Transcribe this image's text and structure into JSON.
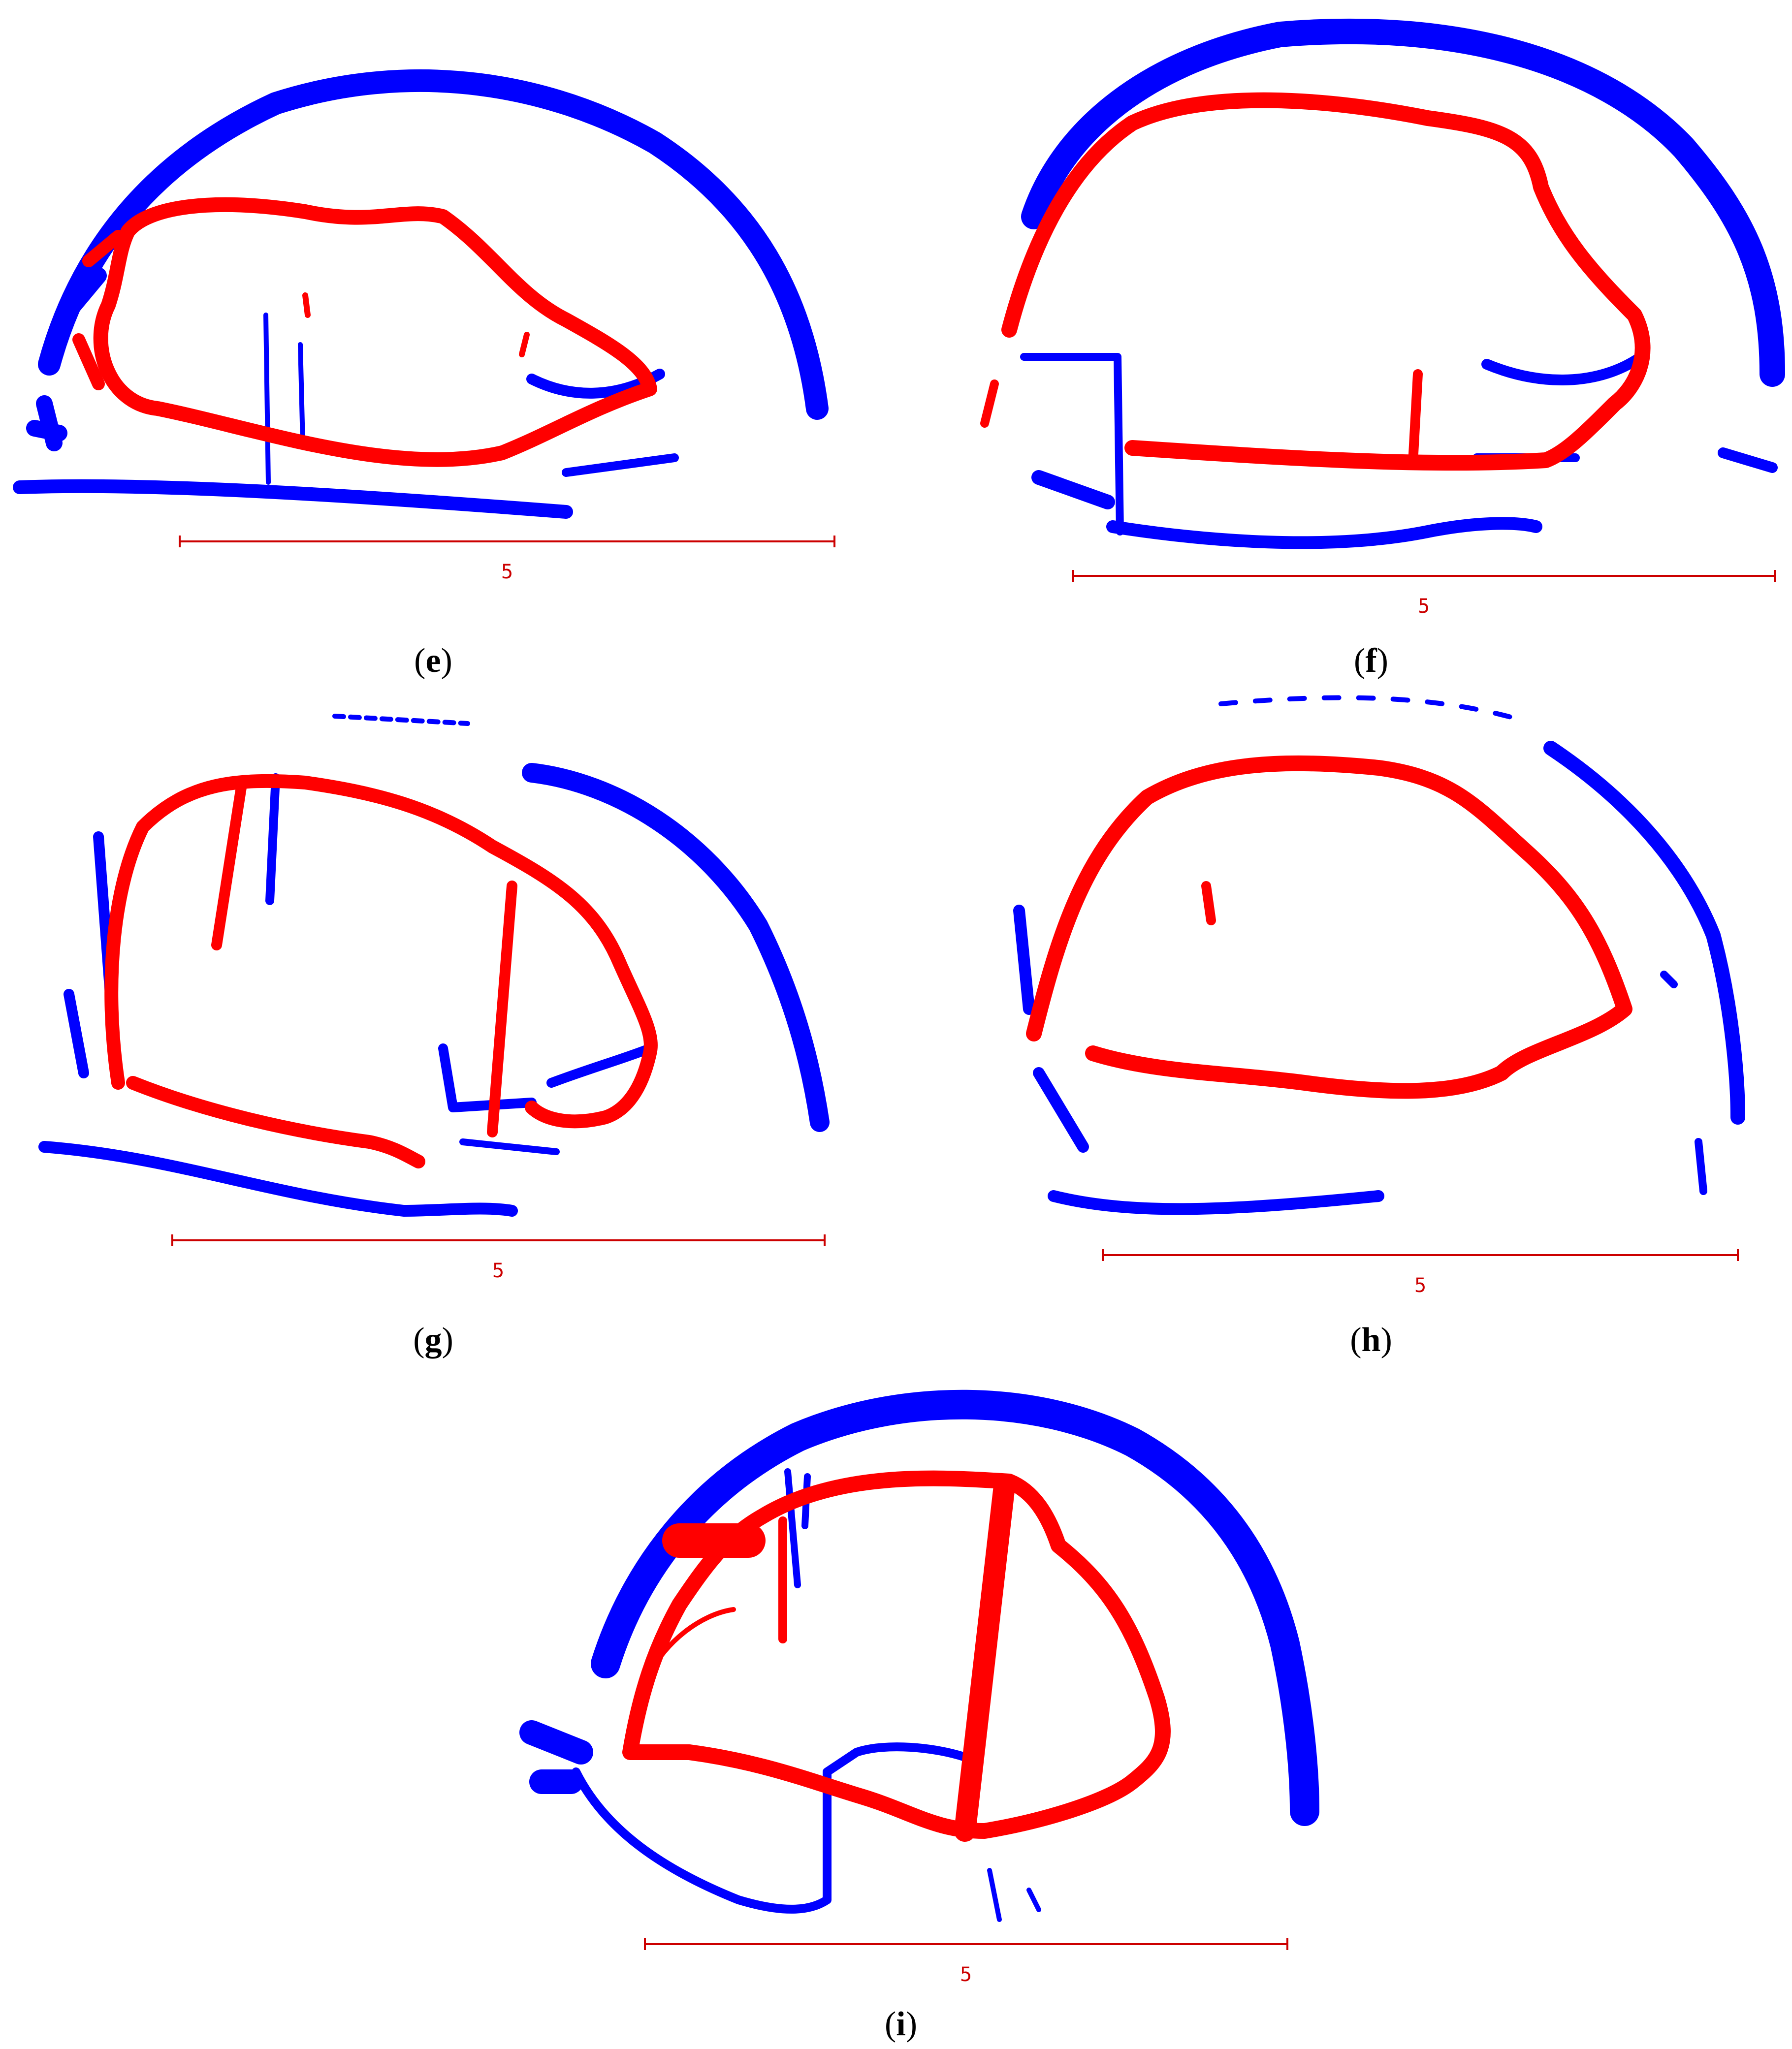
{
  "figure": {
    "colors": {
      "point_cloud_a": "#ff0000",
      "point_cloud_b": "#0000ff",
      "scale_bar": "#cc0000",
      "caption": "#000000",
      "background": "#ffffff"
    },
    "panels": [
      {
        "id": "e",
        "caption_open": "(",
        "caption_letter": "e",
        "caption_close": ")",
        "scale_label": "5"
      },
      {
        "id": "f",
        "caption_open": "(",
        "caption_letter": "f",
        "caption_close": ")",
        "scale_label": "5"
      },
      {
        "id": "g",
        "caption_open": "(",
        "caption_letter": "g",
        "caption_close": ")",
        "scale_label": "5"
      },
      {
        "id": "h",
        "caption_open": "(",
        "caption_letter": "h",
        "caption_close": ")",
        "scale_label": "5"
      },
      {
        "id": "i",
        "caption_open": "(",
        "caption_letter": "i",
        "caption_close": ")",
        "scale_label": "5"
      }
    ]
  }
}
